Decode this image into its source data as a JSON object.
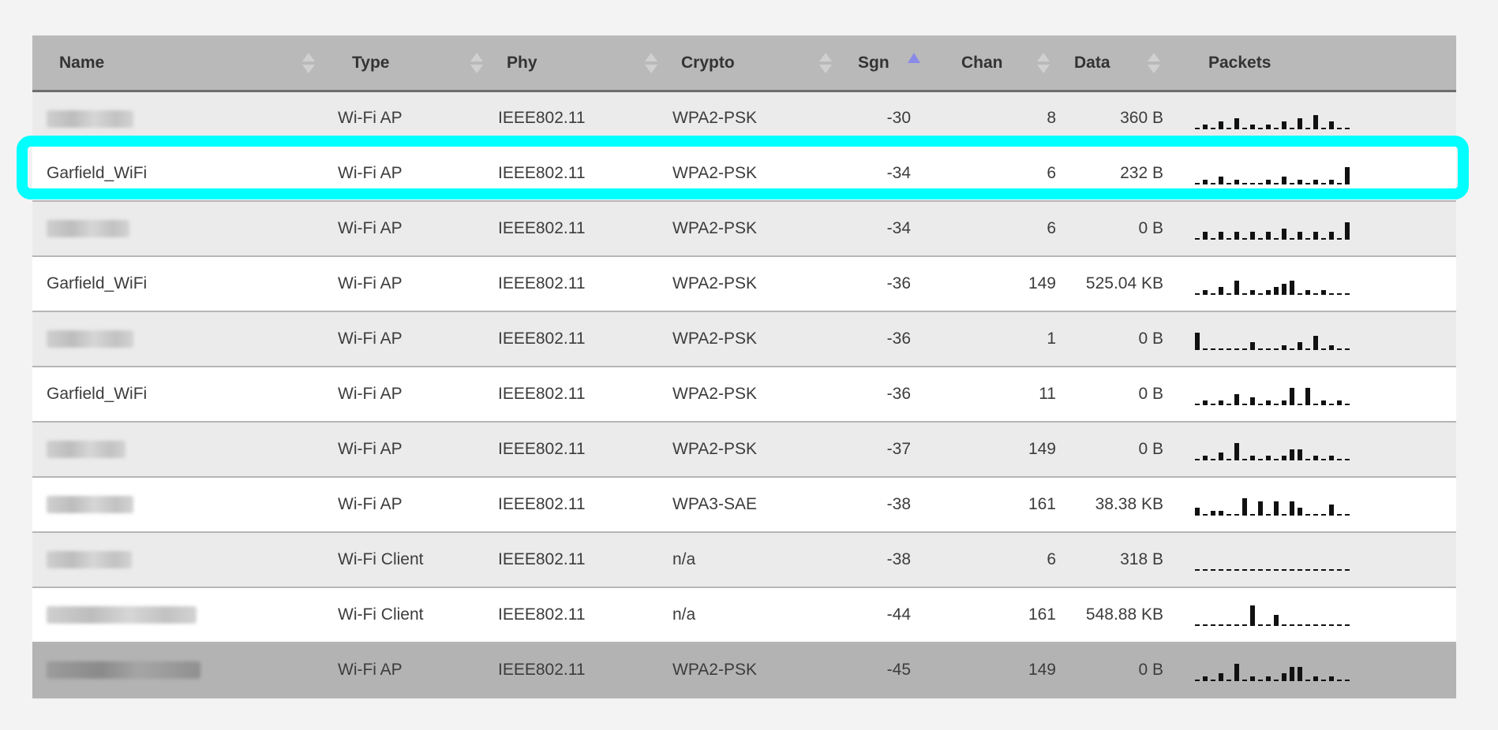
{
  "table": {
    "columns": [
      {
        "key": "name",
        "label": "Name",
        "sort": "none"
      },
      {
        "key": "type",
        "label": "Type",
        "sort": "none"
      },
      {
        "key": "phy",
        "label": "Phy",
        "sort": "none"
      },
      {
        "key": "crypto",
        "label": "Crypto",
        "sort": "none"
      },
      {
        "key": "sgn",
        "label": "Sgn",
        "sort": "ascending"
      },
      {
        "key": "chan",
        "label": "Chan",
        "sort": "none"
      },
      {
        "key": "data",
        "label": "Data",
        "sort": "none"
      },
      {
        "key": "packets",
        "label": "Packets",
        "sort": "none"
      }
    ],
    "rows": [
      {
        "name": "",
        "name_obscured": true,
        "type": "Wi-Fi AP",
        "phy": "IEEE802.11",
        "crypto": "WPA2-PSK",
        "sgn": "-30",
        "chan": "8",
        "data": "360 B",
        "packets": [
          0,
          1,
          0,
          2,
          0,
          3,
          0,
          1,
          0,
          1,
          0,
          2,
          0,
          3,
          0,
          4,
          0,
          2,
          0,
          0
        ],
        "state": "odd"
      },
      {
        "name": "Garfield_WiFi",
        "name_obscured": false,
        "type": "Wi-Fi AP",
        "phy": "IEEE802.11",
        "crypto": "WPA2-PSK",
        "sgn": "-34",
        "chan": "6",
        "data": "232 B",
        "packets": [
          0,
          1,
          0,
          2,
          0,
          1,
          0,
          0,
          0,
          1,
          0,
          2,
          0,
          1,
          0,
          1,
          0,
          1,
          0,
          5
        ],
        "state": "even"
      },
      {
        "name": "",
        "name_obscured": true,
        "type": "Wi-Fi AP",
        "phy": "IEEE802.11",
        "crypto": "WPA2-PSK",
        "sgn": "-34",
        "chan": "6",
        "data": "0 B",
        "packets": [
          0,
          2,
          0,
          2,
          0,
          2,
          0,
          2,
          0,
          2,
          0,
          3,
          0,
          2,
          0,
          2,
          0,
          2,
          0,
          5
        ],
        "state": "odd"
      },
      {
        "name": "Garfield_WiFi",
        "name_obscured": false,
        "type": "Wi-Fi AP",
        "phy": "IEEE802.11",
        "crypto": "WPA2-PSK",
        "sgn": "-36",
        "chan": "149",
        "data": "525.04 KB",
        "packets": [
          0,
          1,
          0,
          2,
          0,
          4,
          0,
          1,
          0,
          1,
          2,
          3,
          4,
          0,
          1,
          0,
          1,
          0,
          0,
          0
        ],
        "state": "even"
      },
      {
        "name": "",
        "name_obscured": true,
        "type": "Wi-Fi AP",
        "phy": "IEEE802.11",
        "crypto": "WPA2-PSK",
        "sgn": "-36",
        "chan": "1",
        "data": "0 B",
        "packets": [
          5,
          0,
          0,
          0,
          0,
          0,
          0,
          2,
          0,
          0,
          0,
          1,
          0,
          2,
          0,
          4,
          0,
          1,
          0,
          0
        ],
        "state": "odd"
      },
      {
        "name": "Garfield_WiFi",
        "name_obscured": false,
        "type": "Wi-Fi AP",
        "phy": "IEEE802.11",
        "crypto": "WPA2-PSK",
        "sgn": "-36",
        "chan": "11",
        "data": "0 B",
        "packets": [
          0,
          1,
          0,
          1,
          0,
          3,
          0,
          2,
          0,
          1,
          0,
          1,
          5,
          0,
          5,
          0,
          1,
          0,
          1,
          0
        ],
        "state": "even"
      },
      {
        "name": "",
        "name_obscured": true,
        "type": "Wi-Fi AP",
        "phy": "IEEE802.11",
        "crypto": "WPA2-PSK",
        "sgn": "-37",
        "chan": "149",
        "data": "0 B",
        "packets": [
          0,
          1,
          0,
          2,
          0,
          5,
          0,
          1,
          0,
          1,
          0,
          1,
          3,
          3,
          0,
          1,
          0,
          1,
          0,
          0
        ],
        "state": "odd"
      },
      {
        "name": "",
        "name_obscured": true,
        "type": "Wi-Fi AP",
        "phy": "IEEE802.11",
        "crypto": "WPA3-SAE",
        "sgn": "-38",
        "chan": "161",
        "data": "38.38 KB",
        "packets": [
          2,
          0,
          1,
          1,
          0,
          0,
          5,
          0,
          4,
          0,
          4,
          0,
          4,
          2,
          0,
          0,
          0,
          3,
          0,
          0
        ],
        "state": "even"
      },
      {
        "name": "",
        "name_obscured": true,
        "type": "Wi-Fi Client",
        "phy": "IEEE802.11",
        "crypto": "n/a",
        "sgn": "-38",
        "chan": "6",
        "data": "318 B",
        "packets": [
          0,
          0,
          0,
          0,
          0,
          0,
          0,
          0,
          0,
          0,
          0,
          0,
          0,
          0,
          0,
          0,
          0,
          0,
          0,
          0
        ],
        "state": "odd"
      },
      {
        "name": "",
        "name_obscured": true,
        "type": "Wi-Fi Client",
        "phy": "IEEE802.11",
        "crypto": "n/a",
        "sgn": "-44",
        "chan": "161",
        "data": "548.88 KB",
        "packets": [
          0,
          0,
          0,
          0,
          0,
          0,
          0,
          6,
          0,
          0,
          3,
          0,
          0,
          0,
          0,
          0,
          0,
          0,
          0,
          0
        ],
        "state": "even"
      },
      {
        "name": "",
        "name_obscured": true,
        "type": "Wi-Fi AP",
        "phy": "IEEE802.11",
        "crypto": "WPA2-PSK",
        "sgn": "-45",
        "chan": "149",
        "data": "0 B",
        "packets": [
          0,
          1,
          0,
          2,
          0,
          5,
          0,
          1,
          0,
          1,
          0,
          2,
          4,
          4,
          0,
          1,
          0,
          1,
          0,
          0
        ],
        "state": "selected"
      }
    ]
  },
  "highlight": {
    "row_index": 1,
    "color": "#00ffff"
  },
  "colors": {
    "header_bg": "#b9b9b9",
    "row_odd": "#ebebeb",
    "row_even": "#ffffff",
    "row_selected": "#b3b3b3",
    "sort_active": "#8a8ae8"
  }
}
